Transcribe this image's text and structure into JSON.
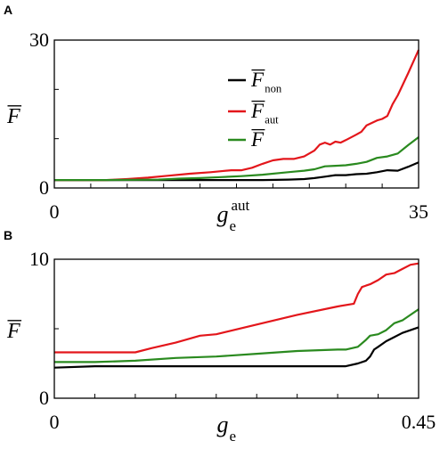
{
  "chart_data": [
    {
      "panel": "A",
      "type": "line",
      "xlabel": {
        "main": "g",
        "sub": "e",
        "sup": "aut"
      },
      "ylabel": {
        "main": "F",
        "overline": true
      },
      "xlim": [
        0,
        35
      ],
      "ylim": [
        0,
        30
      ],
      "xticks": [
        0,
        35
      ],
      "xtick_labels": [
        "0",
        "35"
      ],
      "yticks": [
        0,
        30
      ],
      "ytick_labels": [
        "0",
        "30"
      ],
      "minor_xticks": 10,
      "minor_yticks": 3,
      "legend_position": "top-center",
      "series": [
        {
          "name": "F_non",
          "legend": {
            "main": "F",
            "sub": "non",
            "overline": true
          },
          "color": "#000000",
          "x": [
            0,
            5,
            10,
            15,
            17.5,
            20,
            22.5,
            24,
            25,
            26,
            27,
            28,
            29,
            30,
            31,
            32,
            33,
            34,
            35
          ],
          "y": [
            1.6,
            1.6,
            1.6,
            1.6,
            1.6,
            1.6,
            1.7,
            1.8,
            2.0,
            2.3,
            2.6,
            2.6,
            2.8,
            2.9,
            3.2,
            3.6,
            3.5,
            4.3,
            5.2
          ]
        },
        {
          "name": "F_aut",
          "legend": {
            "main": "F",
            "sub": "aut",
            "overline": true
          },
          "color": "#e3161b",
          "x": [
            0,
            5,
            7,
            9,
            11,
            13,
            15,
            16,
            17,
            18,
            19,
            20,
            21,
            22,
            23,
            24,
            25,
            25.5,
            26,
            26.5,
            27,
            27.5,
            28,
            29,
            29.5,
            30,
            31,
            31.5,
            32,
            32.5,
            33,
            34,
            35
          ],
          "y": [
            1.6,
            1.6,
            1.8,
            2.1,
            2.5,
            2.9,
            3.2,
            3.4,
            3.6,
            3.6,
            4.1,
            4.9,
            5.6,
            5.9,
            5.9,
            6.4,
            7.6,
            8.8,
            9.2,
            8.8,
            9.4,
            9.2,
            9.7,
            10.8,
            11.4,
            12.7,
            13.7,
            14.0,
            14.6,
            17.0,
            18.8,
            23.3,
            28.0
          ]
        },
        {
          "name": "F",
          "legend": {
            "main": "F",
            "overline": true
          },
          "color": "#2a8a1f",
          "x": [
            0,
            5,
            10,
            12,
            14,
            16,
            18,
            20,
            22,
            23,
            24,
            25,
            26,
            27,
            28,
            29,
            30,
            31,
            32,
            33,
            34,
            35
          ],
          "y": [
            1.6,
            1.6,
            1.7,
            1.9,
            2.0,
            2.2,
            2.4,
            2.7,
            3.1,
            3.3,
            3.5,
            3.8,
            4.4,
            4.5,
            4.6,
            4.9,
            5.3,
            6.1,
            6.4,
            7.0,
            8.7,
            10.3
          ]
        }
      ]
    },
    {
      "panel": "B",
      "type": "line",
      "xlabel": {
        "main": "g",
        "sub": "e"
      },
      "ylabel": {
        "main": "F",
        "overline": true
      },
      "xlim": [
        0,
        0.45
      ],
      "ylim": [
        0,
        10
      ],
      "xticks": [
        0,
        0.45
      ],
      "xtick_labels": [
        "0",
        "0.45"
      ],
      "yticks": [
        0,
        10
      ],
      "ytick_labels": [
        "0",
        "10"
      ],
      "minor_xticks": 9,
      "minor_yticks": 2,
      "series": [
        {
          "name": "F_non",
          "color": "#000000",
          "x": [
            0,
            0.05,
            0.1,
            0.15,
            0.2,
            0.25,
            0.3,
            0.35,
            0.36,
            0.375,
            0.385,
            0.39,
            0.395,
            0.4,
            0.41,
            0.42,
            0.43,
            0.44,
            0.45
          ],
          "y": [
            2.2,
            2.3,
            2.3,
            2.3,
            2.3,
            2.3,
            2.3,
            2.3,
            2.3,
            2.5,
            2.7,
            3.0,
            3.5,
            3.7,
            4.1,
            4.4,
            4.7,
            4.9,
            5.1
          ]
        },
        {
          "name": "F_aut",
          "color": "#e3161b",
          "x": [
            0,
            0.05,
            0.1,
            0.12,
            0.15,
            0.18,
            0.2,
            0.25,
            0.3,
            0.35,
            0.37,
            0.375,
            0.38,
            0.385,
            0.39,
            0.4,
            0.41,
            0.42,
            0.43,
            0.44,
            0.45
          ],
          "y": [
            3.3,
            3.3,
            3.3,
            3.6,
            4.0,
            4.5,
            4.6,
            5.3,
            6.0,
            6.6,
            6.8,
            7.5,
            8.0,
            8.1,
            8.2,
            8.5,
            8.9,
            9.0,
            9.3,
            9.6,
            9.7
          ]
        },
        {
          "name": "F",
          "color": "#2a8a1f",
          "x": [
            0,
            0.05,
            0.1,
            0.15,
            0.2,
            0.25,
            0.3,
            0.35,
            0.36,
            0.375,
            0.385,
            0.39,
            0.4,
            0.41,
            0.42,
            0.43,
            0.44,
            0.45
          ],
          "y": [
            2.6,
            2.6,
            2.7,
            2.9,
            3.0,
            3.2,
            3.4,
            3.5,
            3.5,
            3.7,
            4.2,
            4.5,
            4.6,
            4.9,
            5.4,
            5.6,
            6.0,
            6.4
          ]
        }
      ]
    }
  ]
}
